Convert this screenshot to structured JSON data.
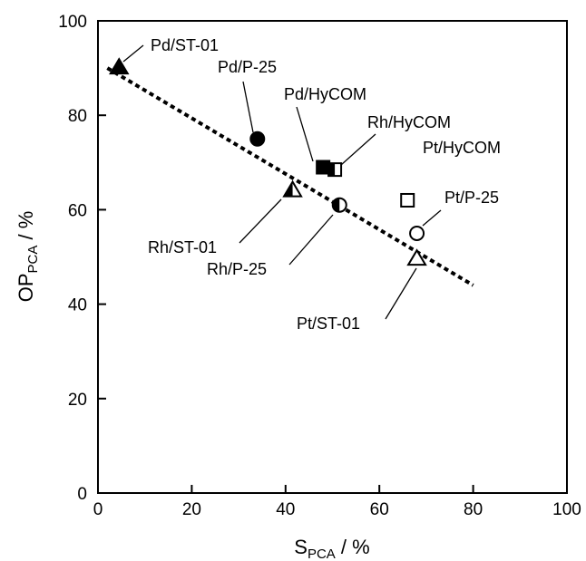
{
  "chart_data": {
    "type": "scatter",
    "xlabel": {
      "main": "S",
      "sub": "PCA",
      "suffix": " / %"
    },
    "ylabel": {
      "main": "OP",
      "sub": "PCA",
      "suffix": " / %"
    },
    "xlim": [
      0,
      100
    ],
    "ylim": [
      0,
      100
    ],
    "xticks": [
      "0",
      "20",
      "40",
      "60",
      "80",
      "100"
    ],
    "yticks": [
      "0",
      "20",
      "40",
      "60",
      "80",
      "100"
    ],
    "grid": false,
    "points": [
      {
        "label": "Pd/ST-01",
        "x": 4.5,
        "y": 90,
        "marker": "triangle",
        "fill": "full"
      },
      {
        "label": "Pd/P-25",
        "x": 34,
        "y": 75,
        "marker": "circle",
        "fill": "full"
      },
      {
        "label": "Pd/HyCOM",
        "x": 48,
        "y": 69,
        "marker": "square",
        "fill": "full"
      },
      {
        "label": "Rh/HyCOM",
        "x": 50.5,
        "y": 68.5,
        "marker": "square",
        "fill": "half"
      },
      {
        "label": "Pt/HyCOM",
        "x": 66,
        "y": 62,
        "marker": "square",
        "fill": "open"
      },
      {
        "label": "Pt/P-25",
        "x": 68,
        "y": 55,
        "marker": "circle",
        "fill": "open"
      },
      {
        "label": "Rh/ST-01",
        "x": 41.5,
        "y": 64,
        "marker": "triangle",
        "fill": "half"
      },
      {
        "label": "Rh/P-25",
        "x": 51.5,
        "y": 61,
        "marker": "circle",
        "fill": "half"
      },
      {
        "label": "Pt/ST-01",
        "x": 68,
        "y": 49.5,
        "marker": "triangle",
        "fill": "open"
      }
    ],
    "trendline": {
      "style": "dotted",
      "x": [
        2,
        80
      ],
      "y": [
        90,
        44
      ]
    }
  }
}
